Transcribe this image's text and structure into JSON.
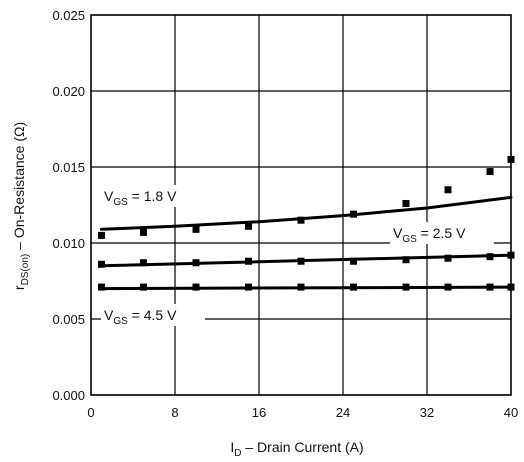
{
  "chart_data": {
    "type": "scatter",
    "x_axis": {
      "label_main": "I",
      "label_sub": "D",
      "label_rest": " – Drain Current (A)",
      "range": [
        0,
        40
      ],
      "ticks": [
        "0",
        "8",
        "16",
        "24",
        "32",
        "40"
      ],
      "tick_values": [
        0,
        8,
        16,
        24,
        32,
        40
      ]
    },
    "y_axis": {
      "label_main": "r",
      "label_sub": "DS(on)",
      "label_rest": " – On-Resistance (Ω)",
      "range": [
        0,
        0.025
      ],
      "ticks": [
        "0.000",
        "0.005",
        "0.010",
        "0.015",
        "0.020",
        "0.025"
      ],
      "tick_values": [
        0,
        0.005,
        0.01,
        0.015,
        0.02,
        0.025
      ]
    },
    "grid": true,
    "series": [
      {
        "name": "VGS = 1.8 V",
        "name_main": "V",
        "name_sub": "GS",
        "name_rest": " = 1.8 V",
        "points": [
          [
            1,
            0.0105
          ],
          [
            5,
            0.0107
          ],
          [
            10,
            0.0109
          ],
          [
            15,
            0.0111
          ],
          [
            20,
            0.0115
          ],
          [
            25,
            0.0119
          ],
          [
            30,
            0.0126
          ],
          [
            34,
            0.0135
          ],
          [
            38,
            0.0147
          ],
          [
            40,
            0.0155
          ]
        ],
        "fit": [
          [
            1,
            0.0109
          ],
          [
            8,
            0.0111
          ],
          [
            16,
            0.0114
          ],
          [
            24,
            0.0118
          ],
          [
            32,
            0.0123
          ],
          [
            40,
            0.013
          ]
        ]
      },
      {
        "name": "VGS = 2.5 V",
        "name_main": "V",
        "name_sub": "GS",
        "name_rest": " = 2.5 V",
        "points": [
          [
            1,
            0.0086
          ],
          [
            5,
            0.0087
          ],
          [
            10,
            0.0087
          ],
          [
            15,
            0.0088
          ],
          [
            20,
            0.0088
          ],
          [
            25,
            0.0088
          ],
          [
            30,
            0.0089
          ],
          [
            34,
            0.009
          ],
          [
            38,
            0.0091
          ],
          [
            40,
            0.0092
          ]
        ],
        "fit": [
          [
            1,
            0.0085
          ],
          [
            40,
            0.0092
          ]
        ]
      },
      {
        "name": "VGS = 4.5 V",
        "name_main": "V",
        "name_sub": "GS",
        "name_rest": " = 4.5 V",
        "points": [
          [
            1,
            0.0071
          ],
          [
            5,
            0.0071
          ],
          [
            10,
            0.0071
          ],
          [
            15,
            0.0071
          ],
          [
            20,
            0.0071
          ],
          [
            25,
            0.0071
          ],
          [
            30,
            0.0071
          ],
          [
            34,
            0.0071
          ],
          [
            38,
            0.0071
          ],
          [
            40,
            0.0071
          ]
        ],
        "fit": [
          [
            1,
            0.007
          ],
          [
            40,
            0.0071
          ]
        ]
      }
    ]
  }
}
